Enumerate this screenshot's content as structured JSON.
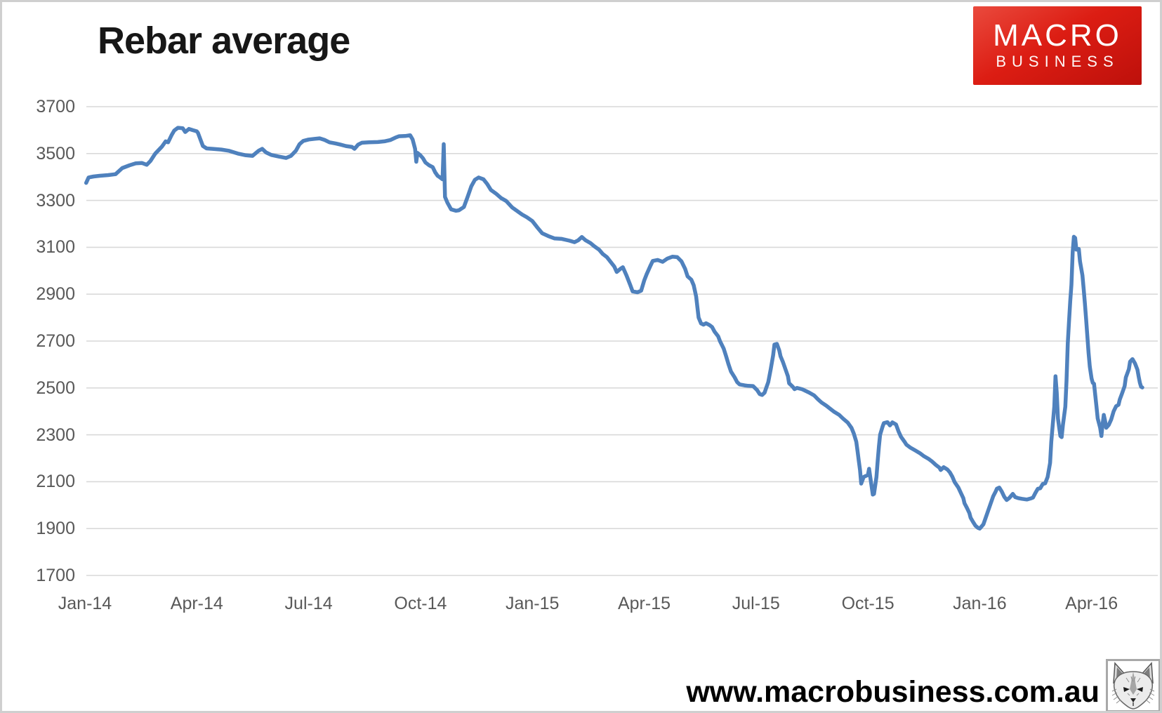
{
  "page": {
    "title": "Rebar average"
  },
  "logo": {
    "line1": "MACRO",
    "line2": "BUSINESS",
    "background_color": "#d71910",
    "text_color": "#ffffff"
  },
  "footer": {
    "website": "www.macrobusiness.com.au",
    "stamp_icon": "fox-sketch-icon"
  },
  "chart_data": {
    "type": "line",
    "title": "Rebar average",
    "series_name": "Rebar average price",
    "line_color": "#4f81bd",
    "grid_color": "#d9d9d9",
    "label_color": "#595959",
    "legend": "none",
    "grid": "horizontal",
    "ylim": [
      1700,
      3700
    ],
    "ytick_step": 200,
    "yticks": [
      3700,
      3500,
      3300,
      3100,
      2900,
      2700,
      2500,
      2300,
      2100,
      1900,
      1700
    ],
    "xticks": [
      "Jan-14",
      "Apr-14",
      "Jul-14",
      "Oct-14",
      "Jan-15",
      "Apr-15",
      "Jul-15",
      "Oct-15",
      "Jan-16",
      "Apr-16"
    ],
    "points": [
      [
        "2014-01-02",
        3375
      ],
      [
        "2014-01-04",
        3398
      ],
      [
        "2014-01-08",
        3402
      ],
      [
        "2014-01-13",
        3405
      ],
      [
        "2014-01-20",
        3408
      ],
      [
        "2014-01-26",
        3412
      ],
      [
        "2014-02-01",
        3438
      ],
      [
        "2014-02-07",
        3450
      ],
      [
        "2014-02-12",
        3458
      ],
      [
        "2014-02-17",
        3460
      ],
      [
        "2014-02-21",
        3452
      ],
      [
        "2014-02-24",
        3468
      ],
      [
        "2014-02-28",
        3500
      ],
      [
        "2014-03-03",
        3530
      ],
      [
        "2014-03-06",
        3552
      ],
      [
        "2014-03-08",
        3548
      ],
      [
        "2014-03-11",
        3580
      ],
      [
        "2014-03-13",
        3598
      ],
      [
        "2014-03-16",
        3610
      ],
      [
        "2014-03-20",
        3608
      ],
      [
        "2014-03-22",
        3592
      ],
      [
        "2014-03-25",
        3605
      ],
      [
        "2014-03-28",
        3600
      ],
      [
        "2014-04-01",
        3595
      ],
      [
        "2014-04-02",
        3588
      ],
      [
        "2014-04-04",
        3560
      ],
      [
        "2014-04-06",
        3532
      ],
      [
        "2014-04-09",
        3522
      ],
      [
        "2014-04-14",
        3520
      ],
      [
        "2014-04-21",
        3517
      ],
      [
        "2014-04-27",
        3512
      ],
      [
        "2014-05-04",
        3500
      ],
      [
        "2014-05-10",
        3493
      ],
      [
        "2014-05-16",
        3490
      ],
      [
        "2014-05-21",
        3512
      ],
      [
        "2014-05-24",
        3520
      ],
      [
        "2014-05-27",
        3505
      ],
      [
        "2014-06-01",
        3494
      ],
      [
        "2014-06-07",
        3487
      ],
      [
        "2014-06-13",
        3481
      ],
      [
        "2014-06-17",
        3490
      ],
      [
        "2014-06-21",
        3512
      ],
      [
        "2014-06-24",
        3540
      ],
      [
        "2014-06-27",
        3554
      ],
      [
        "2014-07-01",
        3560
      ],
      [
        "2014-07-06",
        3563
      ],
      [
        "2014-07-10",
        3565
      ],
      [
        "2014-07-14",
        3558
      ],
      [
        "2014-07-18",
        3548
      ],
      [
        "2014-07-23",
        3543
      ],
      [
        "2014-07-27",
        3538
      ],
      [
        "2014-08-01",
        3532
      ],
      [
        "2014-08-06",
        3528
      ],
      [
        "2014-08-08",
        3520
      ],
      [
        "2014-08-11",
        3538
      ],
      [
        "2014-08-14",
        3546
      ],
      [
        "2014-08-20",
        3548
      ],
      [
        "2014-08-27",
        3549
      ],
      [
        "2014-09-02",
        3552
      ],
      [
        "2014-09-07",
        3558
      ],
      [
        "2014-09-11",
        3568
      ],
      [
        "2014-09-14",
        3574
      ],
      [
        "2014-09-19",
        3575
      ],
      [
        "2014-09-23",
        3578
      ],
      [
        "2014-09-25",
        3560
      ],
      [
        "2014-09-27",
        3520
      ],
      [
        "2014-09-28",
        3465
      ],
      [
        "2014-09-29",
        3503
      ],
      [
        "2014-10-01",
        3492
      ],
      [
        "2014-10-03",
        3480
      ],
      [
        "2014-10-05",
        3462
      ],
      [
        "2014-10-08",
        3450
      ],
      [
        "2014-10-11",
        3442
      ],
      [
        "2014-10-13",
        3420
      ],
      [
        "2014-10-15",
        3405
      ],
      [
        "2014-10-17",
        3398
      ],
      [
        "2014-10-19",
        3390
      ],
      [
        "2014-10-20",
        3540
      ],
      [
        "2014-10-21",
        3315
      ],
      [
        "2014-10-23",
        3290
      ],
      [
        "2014-10-26",
        3262
      ],
      [
        "2014-10-30",
        3256
      ],
      [
        "2014-11-02",
        3258
      ],
      [
        "2014-11-06",
        3272
      ],
      [
        "2014-11-09",
        3315
      ],
      [
        "2014-11-12",
        3360
      ],
      [
        "2014-11-15",
        3388
      ],
      [
        "2014-11-18",
        3398
      ],
      [
        "2014-11-22",
        3390
      ],
      [
        "2014-11-25",
        3370
      ],
      [
        "2014-11-28",
        3345
      ],
      [
        "2014-12-02",
        3328
      ],
      [
        "2014-12-06",
        3310
      ],
      [
        "2014-12-10",
        3298
      ],
      [
        "2014-12-15",
        3270
      ],
      [
        "2014-12-19",
        3255
      ],
      [
        "2014-12-23",
        3240
      ],
      [
        "2014-12-27",
        3228
      ],
      [
        "2015-01-01",
        3212
      ],
      [
        "2015-01-05",
        3185
      ],
      [
        "2015-01-09",
        3160
      ],
      [
        "2015-01-14",
        3148
      ],
      [
        "2015-01-19",
        3138
      ],
      [
        "2015-01-25",
        3136
      ],
      [
        "2015-02-01",
        3128
      ],
      [
        "2015-02-05",
        3122
      ],
      [
        "2015-02-08",
        3130
      ],
      [
        "2015-02-11",
        3144
      ],
      [
        "2015-02-14",
        3130
      ],
      [
        "2015-02-18",
        3118
      ],
      [
        "2015-02-21",
        3105
      ],
      [
        "2015-02-25",
        3090
      ],
      [
        "2015-02-28",
        3072
      ],
      [
        "2015-03-01",
        3058
      ],
      [
        "2015-03-04",
        3038
      ],
      [
        "2015-03-07",
        3018
      ],
      [
        "2015-03-09",
        2995
      ],
      [
        "2015-03-12",
        3008
      ],
      [
        "2015-03-14",
        3015
      ],
      [
        "2015-03-17",
        2980
      ],
      [
        "2015-03-20",
        2940
      ],
      [
        "2015-03-22",
        2912
      ],
      [
        "2015-03-26",
        2908
      ],
      [
        "2015-03-29",
        2915
      ],
      [
        "2015-04-01",
        2958
      ],
      [
        "2015-04-03",
        2985
      ],
      [
        "2015-04-06",
        3020
      ],
      [
        "2015-04-08",
        3042
      ],
      [
        "2015-04-12",
        3046
      ],
      [
        "2015-04-16",
        3038
      ],
      [
        "2015-04-20",
        3052
      ],
      [
        "2015-04-24",
        3060
      ],
      [
        "2015-04-28",
        3058
      ],
      [
        "2015-05-01",
        3040
      ],
      [
        "2015-05-04",
        3008
      ],
      [
        "2015-05-06",
        2976
      ],
      [
        "2015-05-09",
        2962
      ],
      [
        "2015-05-11",
        2938
      ],
      [
        "2015-05-13",
        2890
      ],
      [
        "2015-05-15",
        2800
      ],
      [
        "2015-05-17",
        2775
      ],
      [
        "2015-05-19",
        2770
      ],
      [
        "2015-05-21",
        2776
      ],
      [
        "2015-05-24",
        2768
      ],
      [
        "2015-05-26",
        2760
      ],
      [
        "2015-05-28",
        2740
      ],
      [
        "2015-05-31",
        2720
      ],
      [
        "2015-06-02",
        2700
      ],
      [
        "2015-06-05",
        2668
      ],
      [
        "2015-06-07",
        2635
      ],
      [
        "2015-06-09",
        2600
      ],
      [
        "2015-06-11",
        2570
      ],
      [
        "2015-06-14",
        2545
      ],
      [
        "2015-06-16",
        2525
      ],
      [
        "2015-06-18",
        2515
      ],
      [
        "2015-06-22",
        2511
      ],
      [
        "2015-06-25",
        2509
      ],
      [
        "2015-06-29",
        2508
      ],
      [
        "2015-07-02",
        2490
      ],
      [
        "2015-07-04",
        2474
      ],
      [
        "2015-07-06",
        2470
      ],
      [
        "2015-07-08",
        2480
      ],
      [
        "2015-07-09",
        2496
      ],
      [
        "2015-07-11",
        2525
      ],
      [
        "2015-07-13",
        2580
      ],
      [
        "2015-07-15",
        2640
      ],
      [
        "2015-07-16",
        2685
      ],
      [
        "2015-07-18",
        2688
      ],
      [
        "2015-07-20",
        2660
      ],
      [
        "2015-07-21",
        2635
      ],
      [
        "2015-07-23",
        2610
      ],
      [
        "2015-07-25",
        2580
      ],
      [
        "2015-07-27",
        2550
      ],
      [
        "2015-07-28",
        2520
      ],
      [
        "2015-07-31",
        2505
      ],
      [
        "2015-08-02",
        2495
      ],
      [
        "2015-08-04",
        2500
      ],
      [
        "2015-08-08",
        2495
      ],
      [
        "2015-08-10",
        2490
      ],
      [
        "2015-08-14",
        2480
      ],
      [
        "2015-08-18",
        2468
      ],
      [
        "2015-08-21",
        2452
      ],
      [
        "2015-08-24",
        2438
      ],
      [
        "2015-08-28",
        2424
      ],
      [
        "2015-09-01",
        2410
      ],
      [
        "2015-09-04",
        2398
      ],
      [
        "2015-09-08",
        2385
      ],
      [
        "2015-09-11",
        2370
      ],
      [
        "2015-09-15",
        2352
      ],
      [
        "2015-09-18",
        2330
      ],
      [
        "2015-09-20",
        2305
      ],
      [
        "2015-09-22",
        2270
      ],
      [
        "2015-09-23",
        2230
      ],
      [
        "2015-09-24",
        2190
      ],
      [
        "2015-09-25",
        2150
      ],
      [
        "2015-09-26",
        2092
      ],
      [
        "2015-09-28",
        2120
      ],
      [
        "2015-09-30",
        2125
      ],
      [
        "2015-10-01",
        2128
      ],
      [
        "2015-10-02",
        2155
      ],
      [
        "2015-10-04",
        2082
      ],
      [
        "2015-10-05",
        2045
      ],
      [
        "2015-10-06",
        2048
      ],
      [
        "2015-10-08",
        2120
      ],
      [
        "2015-10-09",
        2190
      ],
      [
        "2015-10-10",
        2250
      ],
      [
        "2015-10-11",
        2300
      ],
      [
        "2015-10-13",
        2335
      ],
      [
        "2015-10-14",
        2350
      ],
      [
        "2015-10-17",
        2354
      ],
      [
        "2015-10-19",
        2340
      ],
      [
        "2015-10-21",
        2353
      ],
      [
        "2015-10-24",
        2344
      ],
      [
        "2015-10-26",
        2315
      ],
      [
        "2015-10-28",
        2292
      ],
      [
        "2015-10-31",
        2270
      ],
      [
        "2015-11-02",
        2258
      ],
      [
        "2015-11-05",
        2246
      ],
      [
        "2015-11-09",
        2234
      ],
      [
        "2015-11-13",
        2222
      ],
      [
        "2015-11-16",
        2210
      ],
      [
        "2015-11-20",
        2198
      ],
      [
        "2015-11-23",
        2186
      ],
      [
        "2015-11-26",
        2172
      ],
      [
        "2015-11-29",
        2160
      ],
      [
        "2015-11-30",
        2150
      ],
      [
        "2015-12-02",
        2162
      ],
      [
        "2015-12-05",
        2152
      ],
      [
        "2015-12-07",
        2140
      ],
      [
        "2015-12-09",
        2122
      ],
      [
        "2015-12-11",
        2098
      ],
      [
        "2015-12-14",
        2075
      ],
      [
        "2015-12-16",
        2052
      ],
      [
        "2015-12-18",
        2030
      ],
      [
        "2015-12-19",
        2008
      ],
      [
        "2015-12-21",
        1988
      ],
      [
        "2015-12-23",
        1966
      ],
      [
        "2015-12-24",
        1946
      ],
      [
        "2015-12-26",
        1928
      ],
      [
        "2015-12-28",
        1912
      ],
      [
        "2015-12-30",
        1903
      ],
      [
        "2016-01-01",
        1900
      ],
      [
        "2016-01-04",
        1918
      ],
      [
        "2016-01-06",
        1948
      ],
      [
        "2016-01-08",
        1978
      ],
      [
        "2016-01-10",
        2008
      ],
      [
        "2016-01-12",
        2038
      ],
      [
        "2016-01-14",
        2058
      ],
      [
        "2016-01-15",
        2070
      ],
      [
        "2016-01-17",
        2075
      ],
      [
        "2016-01-19",
        2058
      ],
      [
        "2016-01-21",
        2036
      ],
      [
        "2016-01-23",
        2022
      ],
      [
        "2016-01-25",
        2030
      ],
      [
        "2016-01-28",
        2048
      ],
      [
        "2016-01-30",
        2034
      ],
      [
        "2016-02-02",
        2030
      ],
      [
        "2016-02-05",
        2027
      ],
      [
        "2016-02-09",
        2024
      ],
      [
        "2016-02-12",
        2028
      ],
      [
        "2016-02-14",
        2032
      ],
      [
        "2016-02-16",
        2052
      ],
      [
        "2016-02-18",
        2070
      ],
      [
        "2016-02-20",
        2072
      ],
      [
        "2016-02-22",
        2090
      ],
      [
        "2016-02-24",
        2093
      ],
      [
        "2016-02-26",
        2120
      ],
      [
        "2016-02-28",
        2180
      ],
      [
        "2016-02-29",
        2270
      ],
      [
        "2016-03-01",
        2420
      ],
      [
        "2016-03-02",
        2550
      ],
      [
        "2016-03-03",
        2480
      ],
      [
        "2016-03-04",
        2370
      ],
      [
        "2016-03-05",
        2330
      ],
      [
        "2016-03-06",
        2295
      ],
      [
        "2016-03-07",
        2290
      ],
      [
        "2016-03-08",
        2340
      ],
      [
        "2016-03-10",
        2420
      ],
      [
        "2016-03-11",
        2530
      ],
      [
        "2016-03-12",
        2690
      ],
      [
        "2016-03-13",
        2780
      ],
      [
        "2016-03-14",
        2870
      ],
      [
        "2016-03-15",
        2940
      ],
      [
        "2016-03-16",
        3080
      ],
      [
        "2016-03-17",
        3145
      ],
      [
        "2016-03-18",
        3140
      ],
      [
        "2016-03-19",
        3090
      ],
      [
        "2016-03-21",
        3093
      ],
      [
        "2016-03-22",
        3040
      ],
      [
        "2016-03-24",
        2980
      ],
      [
        "2016-03-25",
        2920
      ],
      [
        "2016-03-26",
        2860
      ],
      [
        "2016-03-27",
        2790
      ],
      [
        "2016-03-28",
        2720
      ],
      [
        "2016-03-29",
        2650
      ],
      [
        "2016-03-30",
        2590
      ],
      [
        "2016-04-01",
        2540
      ],
      [
        "2016-04-02",
        2522
      ],
      [
        "2016-04-03",
        2518
      ],
      [
        "2016-04-04",
        2470
      ],
      [
        "2016-04-05",
        2420
      ],
      [
        "2016-04-06",
        2370
      ],
      [
        "2016-04-08",
        2330
      ],
      [
        "2016-04-09",
        2295
      ],
      [
        "2016-04-10",
        2345
      ],
      [
        "2016-04-11",
        2385
      ],
      [
        "2016-04-12",
        2360
      ],
      [
        "2016-04-13",
        2330
      ],
      [
        "2016-04-15",
        2342
      ],
      [
        "2016-04-17",
        2365
      ],
      [
        "2016-04-19",
        2400
      ],
      [
        "2016-04-21",
        2422
      ],
      [
        "2016-04-23",
        2428
      ],
      [
        "2016-04-24",
        2450
      ],
      [
        "2016-04-26",
        2478
      ],
      [
        "2016-04-28",
        2508
      ],
      [
        "2016-04-29",
        2545
      ],
      [
        "2016-05-01",
        2580
      ],
      [
        "2016-05-02",
        2612
      ],
      [
        "2016-05-04",
        2623
      ],
      [
        "2016-05-06",
        2605
      ],
      [
        "2016-05-08",
        2578
      ],
      [
        "2016-05-09",
        2548
      ],
      [
        "2016-05-10",
        2522
      ],
      [
        "2016-05-11",
        2505
      ],
      [
        "2016-05-12",
        2502
      ]
    ]
  }
}
